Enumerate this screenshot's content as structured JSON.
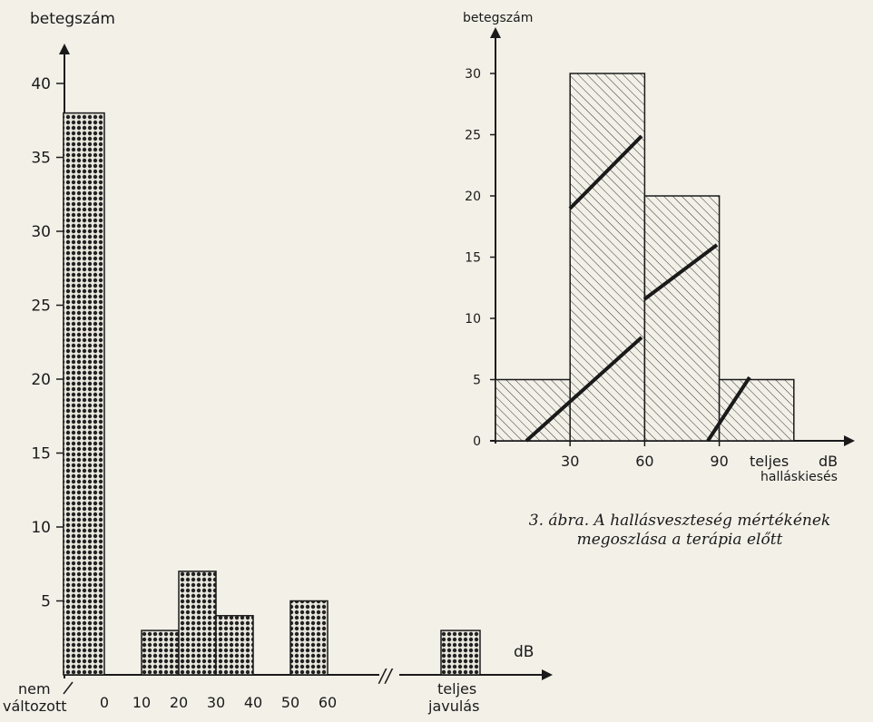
{
  "chart_data": [
    {
      "type": "bar",
      "ylabel": "betegszám",
      "xlabel": "dB",
      "ylim": [
        0,
        45
      ],
      "yticks": [
        5,
        10,
        15,
        20,
        25,
        30,
        35,
        40
      ],
      "bars": [
        {
          "label": "nem változott",
          "value": 38
        },
        {
          "label": "10-20",
          "value": 3
        },
        {
          "label": "20-30",
          "value": 7
        },
        {
          "label": "30-40",
          "value": 4
        },
        {
          "label": "50-60",
          "value": 5
        },
        {
          "label": "teljes javulás",
          "value": 3
        }
      ],
      "x_tick_labels": [
        "0",
        "10",
        "20",
        "30",
        "40",
        "50",
        "60"
      ],
      "special_labels": {
        "left_line1": "nem",
        "left_line2": "változott",
        "right_line1": "teljes",
        "right_line2": "javulás"
      },
      "axis_break": "//",
      "fill_pattern": "dotted"
    },
    {
      "type": "bar",
      "ylabel": "betegszám",
      "xlabel": "dB",
      "xlabel2": "teljes",
      "xlabel3": "halláskiesés",
      "ylim": [
        0,
        30
      ],
      "yticks": [
        0,
        5,
        10,
        15,
        20,
        25,
        30
      ],
      "x_tick_labels": [
        "30",
        "60",
        "90"
      ],
      "bins": [
        {
          "from": 0,
          "to": 30,
          "value": 5
        },
        {
          "from": 30,
          "to": 60,
          "value": 30
        },
        {
          "from": 60,
          "to": 90,
          "value": 20
        },
        {
          "from": 90,
          "to": 120,
          "value": 5
        }
      ],
      "fill_pattern": "hatched"
    }
  ],
  "caption": {
    "line1": "3. ábra. A hallásveszteség mértékének",
    "line2": "megoszlása a terápia előtt"
  }
}
